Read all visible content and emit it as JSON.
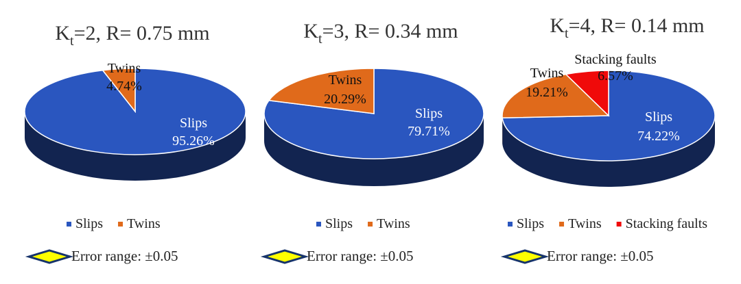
{
  "colors": {
    "Slips": "#2a56bf",
    "Twins": "#e06a1b",
    "Stacking faults": "#f00a0a",
    "slips_side": "#102a6e",
    "twins_side": "#8a3a0a",
    "error_marker_fill": "#ffff00",
    "error_marker_stroke": "#17346b"
  },
  "chart_data": [
    {
      "type": "pie",
      "style": "3d",
      "title": {
        "main": "K",
        "sub": "t",
        "rest": "=2, R= 0.75 mm"
      },
      "categories": [
        "Slips",
        "Twins"
      ],
      "values": [
        95.26,
        4.74
      ],
      "labels": [
        "95.26%",
        "4.74%"
      ],
      "legend": [
        "Slips",
        "Twins"
      ],
      "legend_position": "bottom",
      "error_note": "Error range: ±0.05"
    },
    {
      "type": "pie",
      "style": "3d",
      "title": {
        "main": "K",
        "sub": "t",
        "rest": "=3, R= 0.34 mm"
      },
      "categories": [
        "Slips",
        "Twins"
      ],
      "values": [
        79.71,
        20.29
      ],
      "labels": [
        "79.71%",
        "20.29%"
      ],
      "legend": [
        "Slips",
        "Twins"
      ],
      "legend_position": "bottom",
      "error_note": "Error range: ±0.05"
    },
    {
      "type": "pie",
      "style": "3d",
      "title": {
        "main": "K",
        "sub": "t",
        "rest": "=4, R= 0.14 mm"
      },
      "categories": [
        "Slips",
        "Twins",
        "Stacking faults"
      ],
      "values": [
        74.22,
        19.21,
        6.57
      ],
      "labels": [
        "74.22%",
        "19.21%",
        "6.57%"
      ],
      "legend": [
        "Slips",
        "Twins",
        "Stacking faults"
      ],
      "legend_position": "bottom",
      "error_note": "Error range: ±0.05"
    }
  ]
}
